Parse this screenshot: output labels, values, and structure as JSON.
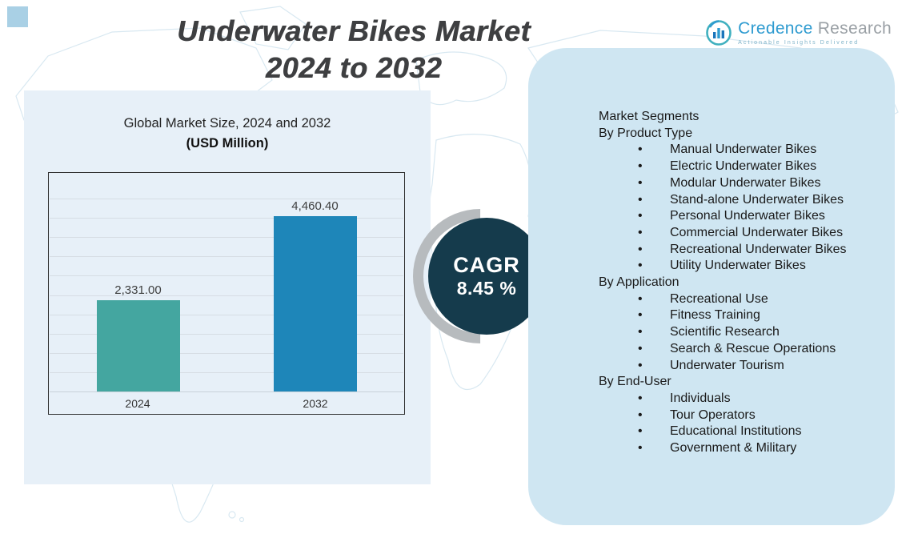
{
  "header": {
    "title_line1": "Underwater Bikes Market",
    "title_line2": "2024 to 2032",
    "logo": {
      "brand_first": "Credence",
      "brand_second": "Research",
      "tagline": "Actionable Insights Delivered",
      "icon": "bar-chart-circle-icon",
      "brand_color": "#2e9bd0",
      "accent_color": "#3fb0bf"
    }
  },
  "chart_panel": {
    "title_regular": "Global Market Size, 2024 and 2032",
    "title_bold": "(USD Million)",
    "panel_color": "#e7f0f8"
  },
  "chart_data": {
    "type": "bar",
    "title": "Global Market Size, 2024 and 2032 (USD Million)",
    "categories": [
      "2024",
      "2032"
    ],
    "values": [
      2331.0,
      4460.4
    ],
    "value_labels": [
      "2,331.00",
      "4,460.40"
    ],
    "bar_colors": [
      "#44a6a0",
      "#1e86b9"
    ],
    "xlabel": "",
    "ylabel": "",
    "ylim": [
      0,
      5400
    ],
    "grid": true,
    "grid_intervals": 11,
    "legend": "none"
  },
  "cagr": {
    "label": "CAGR",
    "value": "8.45 %",
    "circle_color": "#153b4c"
  },
  "segments": {
    "title": "Market Segments",
    "panel_color": "#cfe6f2",
    "groups": [
      {
        "heading": "By Product Type",
        "items": [
          "Manual Underwater Bikes",
          "Electric Underwater Bikes",
          "Modular Underwater Bikes",
          "Stand-alone Underwater Bikes",
          "Personal Underwater Bikes",
          "Commercial Underwater Bikes",
          "Recreational Underwater Bikes",
          "Utility Underwater Bikes"
        ]
      },
      {
        "heading": "By Application",
        "items": [
          "Recreational Use",
          "Fitness Training",
          "Scientific Research",
          "Search & Rescue Operations",
          "Underwater Tourism"
        ]
      },
      {
        "heading": "By End-User",
        "items": [
          "Individuals",
          "Tour Operators",
          "Educational Institutions",
          "Government & Military"
        ]
      }
    ]
  }
}
